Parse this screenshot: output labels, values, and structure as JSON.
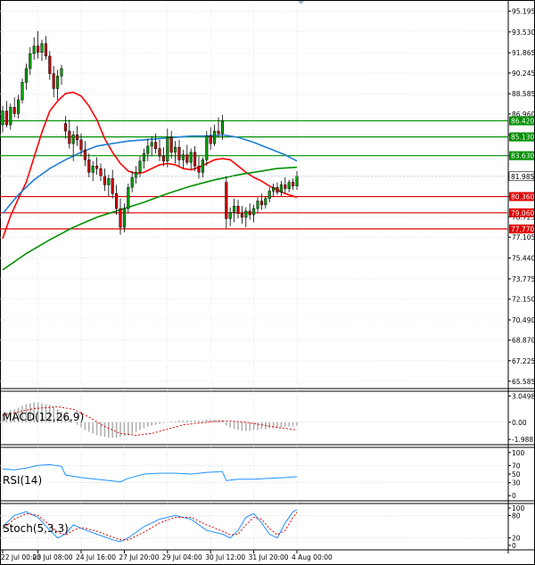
{
  "chart_data": {
    "type": "candlestick",
    "price_axis": {
      "ylim": [
        65.0,
        95.8
      ],
      "ticks": [
        "95.195",
        "93.530",
        "91.865",
        "90.245",
        "88.585",
        "86.960",
        "85.280",
        "83.630",
        "81.985",
        "80.360",
        "78.725",
        "77.105",
        "75.440",
        "73.775",
        "72.150",
        "70.490",
        "68.870",
        "67.225",
        "65.585"
      ]
    },
    "x_axis": {
      "count": 76,
      "labels": [
        {
          "i": 0,
          "text": "22 Jul 00:00"
        },
        {
          "i": 9,
          "text": "23 Jul 08:00"
        },
        {
          "i": 20,
          "text": "24 Jul 16:00"
        },
        {
          "i": 31,
          "text": "27 Jul 20:00"
        },
        {
          "i": 42,
          "text": "29 Jul 04:00"
        },
        {
          "i": 53,
          "text": "30 Jul 12:00"
        },
        {
          "i": 64,
          "text": "31 Jul 20:00"
        },
        {
          "i": 75,
          "text": "4 Aug 00:00"
        }
      ]
    },
    "candles": [
      [
        86.1,
        87.6,
        85.5,
        87.2
      ],
      [
        87.2,
        88.0,
        85.9,
        86.1
      ],
      [
        86.1,
        87.8,
        85.7,
        87.5
      ],
      [
        87.5,
        88.3,
        86.7,
        87.0
      ],
      [
        87.0,
        88.5,
        86.6,
        88.1
      ],
      [
        88.1,
        89.8,
        87.8,
        89.5
      ],
      [
        89.5,
        91.0,
        88.9,
        90.6
      ],
      [
        90.6,
        92.3,
        90.1,
        91.8
      ],
      [
        91.8,
        93.1,
        91.3,
        92.4
      ],
      [
        92.4,
        93.6,
        91.4,
        91.9
      ],
      [
        91.9,
        92.9,
        91.2,
        92.6
      ],
      [
        92.6,
        93.2,
        91.3,
        91.6
      ],
      [
        91.6,
        92.0,
        89.7,
        90.2
      ],
      [
        90.2,
        90.8,
        88.3,
        89.0
      ],
      [
        89.0,
        90.5,
        88.1,
        90.0
      ],
      [
        90.0,
        90.9,
        89.3,
        90.6
      ],
      [
        86.2,
        86.8,
        85.0,
        85.6
      ],
      [
        85.6,
        86.5,
        84.2,
        84.6
      ],
      [
        84.6,
        85.6,
        83.2,
        85.3
      ],
      [
        85.3,
        86.0,
        84.4,
        84.9
      ],
      [
        84.9,
        85.4,
        83.6,
        84.1
      ],
      [
        84.1,
        84.8,
        82.8,
        83.3
      ],
      [
        83.3,
        83.8,
        81.9,
        82.3
      ],
      [
        82.3,
        83.2,
        81.6,
        82.8
      ],
      [
        82.8,
        83.5,
        82.1,
        82.6
      ],
      [
        82.6,
        83.0,
        81.6,
        82.0
      ],
      [
        82.0,
        82.6,
        80.8,
        81.3
      ],
      [
        81.3,
        82.1,
        80.4,
        81.8
      ],
      [
        81.8,
        82.5,
        80.2,
        80.6
      ],
      [
        80.6,
        81.3,
        78.9,
        79.4
      ],
      [
        79.4,
        80.2,
        77.3,
        77.9
      ],
      [
        77.9,
        79.8,
        77.5,
        79.4
      ],
      [
        79.4,
        81.4,
        79.0,
        81.1
      ],
      [
        81.1,
        82.4,
        80.7,
        81.9
      ],
      [
        81.9,
        82.8,
        81.4,
        82.3
      ],
      [
        82.3,
        83.6,
        81.9,
        83.2
      ],
      [
        83.2,
        84.2,
        82.6,
        83.8
      ],
      [
        83.8,
        85.0,
        83.2,
        84.4
      ],
      [
        84.4,
        85.2,
        83.6,
        84.7
      ],
      [
        84.7,
        85.4,
        83.8,
        84.2
      ],
      [
        84.2,
        84.9,
        83.2,
        83.6
      ],
      [
        83.6,
        84.3,
        82.8,
        83.2
      ],
      [
        83.2,
        85.8,
        82.7,
        85.1
      ],
      [
        85.1,
        85.6,
        83.4,
        83.9
      ],
      [
        83.9,
        84.8,
        83.0,
        84.3
      ],
      [
        84.3,
        84.9,
        82.8,
        83.3
      ],
      [
        83.3,
        84.1,
        82.6,
        83.7
      ],
      [
        83.7,
        84.5,
        82.9,
        83.1
      ],
      [
        83.1,
        84.2,
        82.5,
        83.9
      ],
      [
        83.9,
        84.4,
        82.4,
        82.8
      ],
      [
        82.8,
        83.6,
        81.8,
        82.3
      ],
      [
        82.3,
        83.5,
        81.9,
        83.3
      ],
      [
        83.3,
        85.6,
        82.8,
        85.2
      ],
      [
        85.2,
        85.9,
        84.1,
        84.6
      ],
      [
        84.6,
        86.1,
        84.4,
        85.6
      ],
      [
        85.6,
        86.7,
        85.1,
        85.4
      ],
      [
        85.4,
        86.9,
        84.9,
        86.4
      ],
      [
        81.5,
        82.0,
        77.8,
        78.6
      ],
      [
        78.6,
        79.5,
        78.0,
        79.1
      ],
      [
        79.1,
        80.2,
        78.3,
        79.6
      ],
      [
        79.6,
        80.1,
        78.6,
        79.0
      ],
      [
        79.0,
        79.6,
        78.2,
        78.7
      ],
      [
        78.7,
        79.5,
        77.9,
        79.2
      ],
      [
        79.2,
        79.8,
        78.5,
        78.9
      ],
      [
        78.9,
        79.7,
        78.3,
        79.4
      ],
      [
        79.4,
        80.3,
        79.0,
        80.0
      ],
      [
        80.0,
        80.6,
        79.3,
        79.7
      ],
      [
        79.7,
        80.4,
        79.4,
        80.2
      ],
      [
        80.2,
        81.1,
        79.9,
        80.8
      ],
      [
        80.8,
        81.4,
        80.3,
        81.1
      ],
      [
        81.1,
        81.5,
        80.5,
        80.7
      ],
      [
        80.7,
        81.6,
        80.4,
        81.3
      ],
      [
        81.3,
        81.9,
        80.6,
        81.0
      ],
      [
        81.0,
        81.7,
        80.7,
        81.5
      ],
      [
        81.5,
        81.8,
        80.9,
        81.2
      ],
      [
        81.2,
        82.4,
        80.9,
        82.0
      ]
    ],
    "indicators_on_price": [
      {
        "name": "",
        "color": "#ff0000",
        "points": [
          [
            0,
            77.0
          ],
          [
            2,
            78.8
          ],
          [
            4,
            80.2
          ],
          [
            6,
            81.5
          ],
          [
            8,
            83.5
          ],
          [
            10,
            85.5
          ],
          [
            12,
            87.2
          ],
          [
            14,
            88.0
          ],
          [
            16,
            88.6
          ],
          [
            18,
            88.7
          ],
          [
            20,
            88.4
          ],
          [
            22,
            87.6
          ],
          [
            24,
            86.5
          ],
          [
            26,
            85.0
          ],
          [
            28,
            83.9
          ],
          [
            30,
            83.0
          ],
          [
            32,
            82.4
          ],
          [
            34,
            82.2
          ],
          [
            36,
            82.3
          ],
          [
            38,
            82.6
          ],
          [
            40,
            82.9
          ],
          [
            42,
            83.0
          ],
          [
            44,
            82.9
          ],
          [
            46,
            82.6
          ],
          [
            48,
            82.5
          ],
          [
            50,
            82.7
          ],
          [
            52,
            83.0
          ],
          [
            54,
            83.3
          ],
          [
            56,
            83.4
          ],
          [
            58,
            83.3
          ],
          [
            60,
            82.8
          ],
          [
            62,
            82.3
          ],
          [
            64,
            81.9
          ],
          [
            66,
            81.6
          ],
          [
            68,
            81.2
          ],
          [
            70,
            80.9
          ],
          [
            72,
            80.6
          ],
          [
            74,
            80.4
          ],
          [
            75,
            80.3
          ]
        ]
      },
      {
        "name": "",
        "color": "#1e7fd6",
        "points": [
          [
            0,
            79.0
          ],
          [
            4,
            80.5
          ],
          [
            8,
            81.7
          ],
          [
            12,
            82.6
          ],
          [
            16,
            83.3
          ],
          [
            20,
            83.9
          ],
          [
            24,
            84.4
          ],
          [
            28,
            84.6
          ],
          [
            32,
            84.8
          ],
          [
            36,
            84.9
          ],
          [
            40,
            85.0
          ],
          [
            44,
            85.1
          ],
          [
            48,
            85.2
          ],
          [
            52,
            85.2
          ],
          [
            56,
            85.3
          ],
          [
            60,
            85.1
          ],
          [
            64,
            84.7
          ],
          [
            68,
            84.2
          ],
          [
            72,
            83.7
          ],
          [
            75,
            83.2
          ]
        ]
      },
      {
        "name": "",
        "color": "#009000",
        "points": [
          [
            0,
            74.5
          ],
          [
            6,
            75.8
          ],
          [
            12,
            76.9
          ],
          [
            18,
            77.9
          ],
          [
            24,
            78.7
          ],
          [
            30,
            79.3
          ],
          [
            36,
            79.9
          ],
          [
            42,
            80.6
          ],
          [
            48,
            81.2
          ],
          [
            54,
            81.7
          ],
          [
            60,
            82.1
          ],
          [
            66,
            82.4
          ],
          [
            70,
            82.6
          ],
          [
            75,
            82.7
          ]
        ]
      }
    ],
    "levels": [
      {
        "value": 86.42,
        "label": "86.420",
        "color": "#009000"
      },
      {
        "value": 85.13,
        "label": "85.130",
        "color": "#009000"
      },
      {
        "value": 83.63,
        "label": "83.630",
        "color": "#009000"
      },
      {
        "value": 80.36,
        "label": "80.360",
        "color": "#e00000"
      },
      {
        "value": 79.06,
        "label": "79.060",
        "color": "#e00000"
      },
      {
        "value": 77.77,
        "label": "77.770",
        "color": "#e00000"
      }
    ],
    "current_price": {
      "value": 81.985,
      "label": "81.985"
    },
    "macd": {
      "title": "MACD(12,26,9)",
      "ticks": [
        "3.0498",
        "0.00",
        "-1.9887"
      ],
      "ylim": [
        -2.6,
        3.6
      ],
      "signal_points": [
        [
          0,
          0.8
        ],
        [
          8,
          1.6
        ],
        [
          14,
          1.8
        ],
        [
          18,
          1.5
        ],
        [
          22,
          0.6
        ],
        [
          26,
          -0.5
        ],
        [
          30,
          -1.3
        ],
        [
          34,
          -1.5
        ],
        [
          38,
          -1.3
        ],
        [
          42,
          -0.8
        ],
        [
          46,
          -0.3
        ],
        [
          50,
          -0.1
        ],
        [
          54,
          0.1
        ],
        [
          58,
          0.15
        ],
        [
          62,
          0.0
        ],
        [
          66,
          -0.3
        ],
        [
          70,
          -0.6
        ],
        [
          75,
          -0.9
        ]
      ],
      "histogram": [
        1.0,
        1.2,
        1.4,
        1.5,
        1.7,
        1.9,
        2.1,
        2.2,
        2.3,
        2.3,
        2.2,
        2.1,
        2.0,
        1.8,
        1.5,
        1.2,
        0.8,
        0.4,
        0.0,
        -0.3,
        -0.6,
        -0.9,
        -1.1,
        -1.3,
        -1.5,
        -1.6,
        -1.7,
        -1.8,
        -1.8,
        -1.8,
        -1.7,
        -1.6,
        -1.5,
        -1.3,
        -1.1,
        -0.9,
        -0.7,
        -0.5,
        -0.4,
        -0.3,
        -0.2,
        -0.1,
        0.0,
        0.1,
        0.1,
        0.2,
        0.2,
        0.2,
        0.2,
        0.2,
        0.2,
        0.2,
        0.3,
        0.3,
        0.3,
        0.3,
        0.3,
        -0.4,
        -0.6,
        -0.8,
        -0.9,
        -1.0,
        -1.0,
        -1.0,
        -0.9,
        -0.9,
        -0.8,
        -0.8,
        -0.7,
        -0.7,
        -0.6,
        -0.6,
        -0.5,
        -0.5,
        -0.5,
        -0.4
      ]
    },
    "rsi": {
      "title": "RSI(14)",
      "ticks": [
        "100",
        "70",
        "50",
        "30",
        "0"
      ],
      "ylim": [
        0,
        100
      ],
      "points": [
        [
          0,
          62
        ],
        [
          3,
          60
        ],
        [
          6,
          64
        ],
        [
          9,
          70
        ],
        [
          12,
          72
        ],
        [
          15,
          68
        ],
        [
          16,
          48
        ],
        [
          20,
          42
        ],
        [
          24,
          38
        ],
        [
          28,
          34
        ],
        [
          30,
          32
        ],
        [
          32,
          40
        ],
        [
          36,
          50
        ],
        [
          40,
          52
        ],
        [
          44,
          52
        ],
        [
          48,
          50
        ],
        [
          52,
          54
        ],
        [
          56,
          56
        ],
        [
          57,
          35
        ],
        [
          60,
          38
        ],
        [
          64,
          38
        ],
        [
          68,
          40
        ],
        [
          72,
          42
        ],
        [
          75,
          44
        ]
      ]
    },
    "stoch": {
      "title": "Stoch(5,3,3)",
      "ticks": [
        "100",
        "80",
        "20",
        "0"
      ],
      "ylim": [
        0,
        100
      ],
      "k_points": [
        [
          0,
          50
        ],
        [
          3,
          80
        ],
        [
          6,
          90
        ],
        [
          9,
          75
        ],
        [
          12,
          40
        ],
        [
          14,
          20
        ],
        [
          16,
          30
        ],
        [
          18,
          55
        ],
        [
          20,
          45
        ],
        [
          24,
          30
        ],
        [
          28,
          15
        ],
        [
          30,
          10
        ],
        [
          32,
          20
        ],
        [
          36,
          50
        ],
        [
          40,
          70
        ],
        [
          44,
          80
        ],
        [
          48,
          70
        ],
        [
          52,
          40
        ],
        [
          56,
          30
        ],
        [
          58,
          20
        ],
        [
          60,
          40
        ],
        [
          62,
          75
        ],
        [
          64,
          85
        ],
        [
          66,
          60
        ],
        [
          68,
          30
        ],
        [
          70,
          20
        ],
        [
          72,
          60
        ],
        [
          74,
          90
        ],
        [
          75,
          95
        ]
      ],
      "d_points": [
        [
          0,
          45
        ],
        [
          3,
          70
        ],
        [
          6,
          85
        ],
        [
          9,
          80
        ],
        [
          12,
          55
        ],
        [
          14,
          35
        ],
        [
          16,
          28
        ],
        [
          18,
          40
        ],
        [
          20,
          48
        ],
        [
          24,
          38
        ],
        [
          28,
          22
        ],
        [
          30,
          15
        ],
        [
          32,
          15
        ],
        [
          36,
          35
        ],
        [
          40,
          60
        ],
        [
          44,
          75
        ],
        [
          48,
          75
        ],
        [
          52,
          55
        ],
        [
          56,
          38
        ],
        [
          58,
          28
        ],
        [
          60,
          30
        ],
        [
          62,
          55
        ],
        [
          64,
          75
        ],
        [
          66,
          70
        ],
        [
          68,
          45
        ],
        [
          70,
          28
        ],
        [
          72,
          40
        ],
        [
          74,
          75
        ],
        [
          75,
          88
        ]
      ]
    }
  }
}
